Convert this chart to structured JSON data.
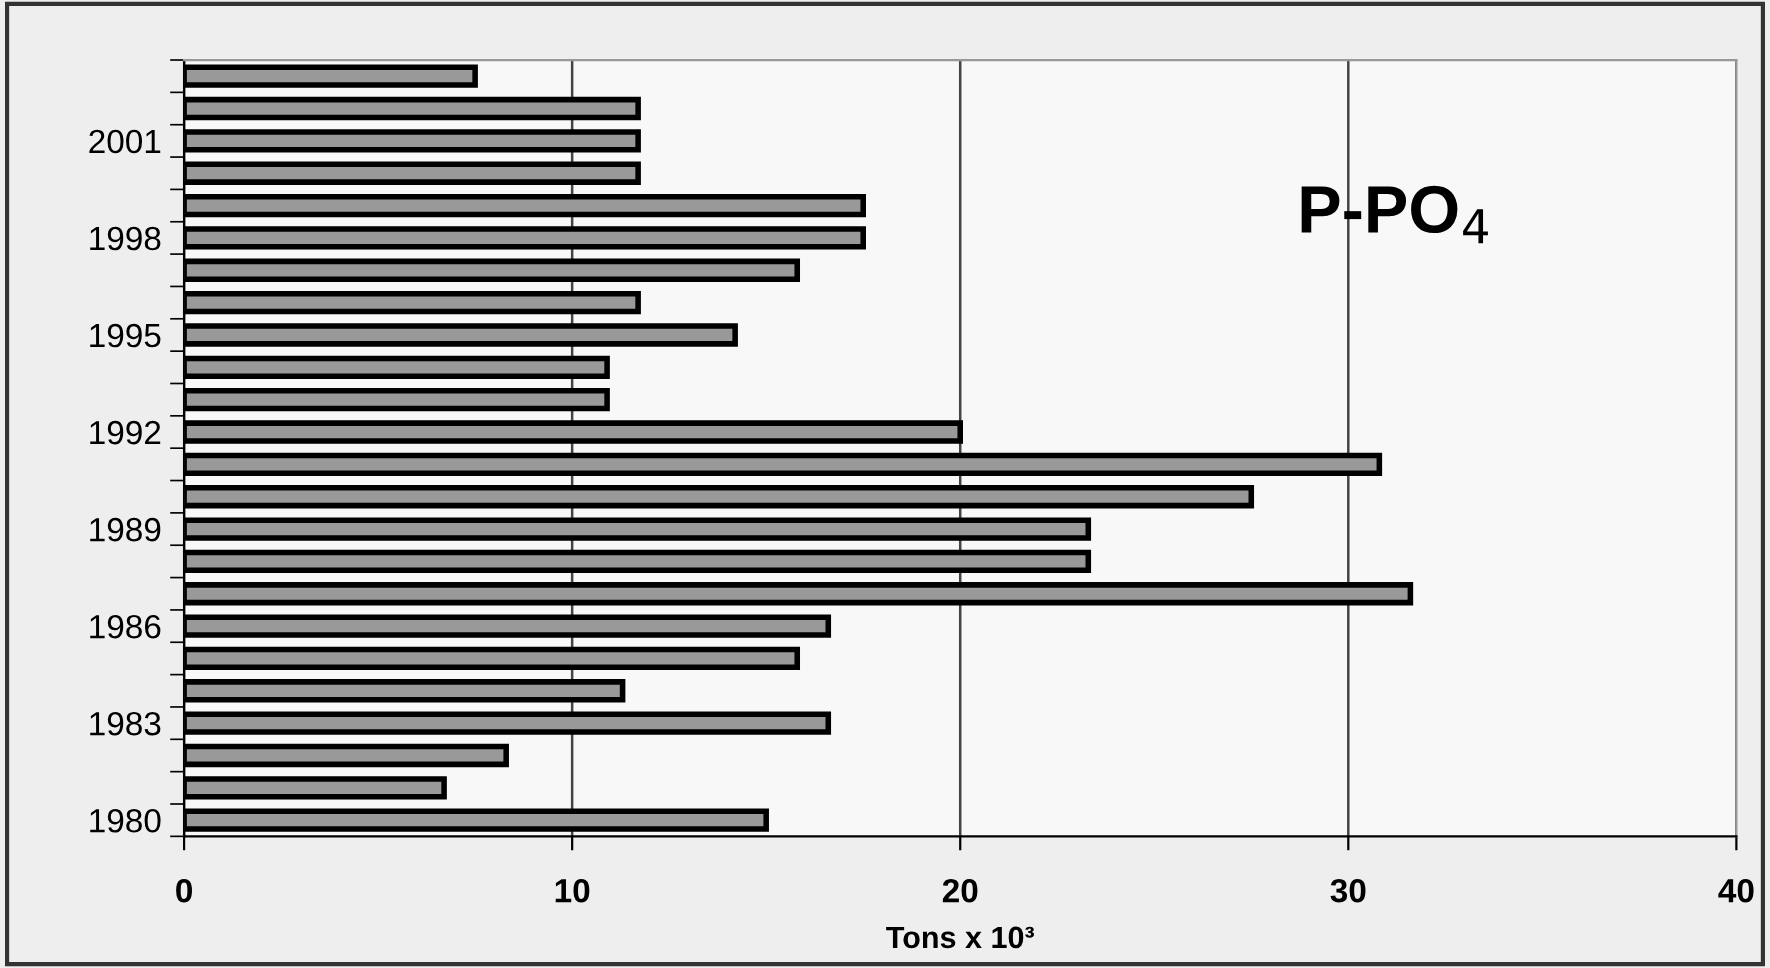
{
  "chart_data": {
    "type": "bar",
    "orientation": "horizontal",
    "categories": [
      null,
      null,
      "2001",
      null,
      null,
      "1998",
      null,
      null,
      "1995",
      null,
      null,
      "1992",
      null,
      null,
      "1989",
      null,
      null,
      "1986",
      null,
      null,
      "1983",
      null,
      null,
      "1980"
    ],
    "values": [
      7.5,
      11.7,
      11.7,
      11.7,
      17.5,
      17.5,
      15.8,
      11.7,
      14.2,
      10.9,
      10.9,
      20.0,
      30.8,
      27.5,
      23.3,
      23.3,
      31.6,
      16.6,
      15.8,
      11.3,
      16.6,
      8.3,
      6.7,
      15.0
    ],
    "color": "#999999",
    "xlim": [
      0,
      40
    ],
    "xticks": [
      0,
      10,
      20,
      30,
      40
    ],
    "xlabel": "Tons x 10³",
    "annotations": [
      "P-PO$_{4}$"
    ],
    "grid": "x",
    "legend": false
  }
}
